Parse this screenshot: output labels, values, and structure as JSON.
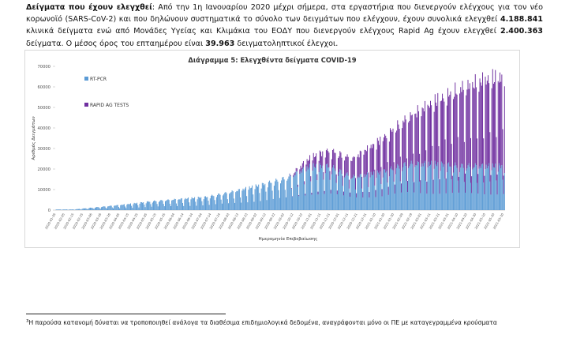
{
  "paragraph": {
    "lead": "Δείγματα που έχουν ελεγχθεί",
    "t1": ": Από την 1η Ιανουαρίου 2020 μέχρι σήμερα, στα εργαστήρια που διενεργούν ελέγχους για τον νέο κορωνοϊό (SARS-CoV-2) και που δηλώνουν συστηματικά το σύνολο των δειγμάτων που ελέγχουν, έχουν συνολικά ελεγχθεί ",
    "n1": "4.188.841",
    "t2": " κλινικά δείγματα ενώ από Μονάδες Υγείας και Κλιμάκια του ΕΟΔΥ που διενεργούν ελέγχους Rapid Ag έχουν ελεγχθεί ",
    "n2": "2.400.363",
    "t3": " δείγματα.  Ο μέσος όρος του επταημέρου είναι ",
    "n3": "39.963",
    "t4": " δειγματοληπτικοί έλεγχοι."
  },
  "chart_data": {
    "type": "bar",
    "stacked": true,
    "title": "Διάγραμμα 5: Ελεγχθέντα δείγματα COVID-19",
    "xlabel": "Ημερομηνία Επιβεβαίωσης",
    "ylabel": "Αριθμός Δειγμάτων",
    "ylim": [
      0,
      70000
    ],
    "yticks": [
      0,
      10000,
      20000,
      30000,
      40000,
      50000,
      60000,
      70000
    ],
    "x_tick_labels": [
      "2020-01-26",
      "2020-02-05",
      "2020-02-15",
      "2020-02-25",
      "2020-03-06",
      "2020-03-16",
      "2020-03-26",
      "2020-04-05",
      "2020-04-15",
      "2020-04-25",
      "2020-05-05",
      "2020-05-15",
      "2020-05-25",
      "2020-06-04",
      "2020-06-14",
      "2020-06-24",
      "2020-07-04",
      "2020-07-14",
      "2020-07-24",
      "2020-08-03",
      "2020-08-13",
      "2020-08-23",
      "2020-09-02",
      "2020-09-12",
      "2020-09-22",
      "2020-10-02",
      "2020-10-12",
      "2020-10-22",
      "2020-11-01",
      "2020-11-11",
      "2020-11-21",
      "2020-12-01",
      "2020-12-11",
      "2020-12-21",
      "2020-12-31",
      "2021-01-10",
      "2021-01-20",
      "2021-01-30",
      "2021-02-09",
      "2021-02-19",
      "2021-03-01",
      "2021-03-11",
      "2021-03-21",
      "2021-03-31",
      "2021-04-10",
      "2021-04-20",
      "2021-04-30",
      "2021-05-10",
      "2021-05-20",
      "2021-05-30"
    ],
    "legend": [
      "RT-PCR",
      "RAPID AG TESTS"
    ],
    "legend_position": "top-left",
    "colors": {
      "RT-PCR": "#5b9bd5",
      "RAPID AG TESTS": "#7030a0"
    },
    "x_start": "2020-01-26",
    "x_end": "2021-05-31",
    "series_by_period": [
      {
        "period": "2020-01-26 / 2020-03-05",
        "RT-PCR": 300,
        "RAPID AG TESTS": 0
      },
      {
        "period": "2020-03-06 / 2020-03-25",
        "RT-PCR": 1500,
        "RAPID AG TESTS": 0
      },
      {
        "period": "2020-03-26 / 2020-04-24",
        "RT-PCR": 2500,
        "RAPID AG TESTS": 0
      },
      {
        "period": "2020-04-25 / 2020-05-24",
        "RT-PCR": 4000,
        "RAPID AG TESTS": 0
      },
      {
        "period": "2020-05-25 / 2020-06-23",
        "RT-PCR": 5000,
        "RAPID AG TESTS": 0
      },
      {
        "period": "2020-06-24 / 2020-07-23",
        "RT-PCR": 6000,
        "RAPID AG TESTS": 0
      },
      {
        "period": "2020-07-24 / 2020-08-22",
        "RT-PCR": 8500,
        "RAPID AG TESTS": 0
      },
      {
        "period": "2020-08-23 / 2020-09-21",
        "RT-PCR": 11500,
        "RAPID AG TESTS": 0
      },
      {
        "period": "2020-09-22 / 2020-10-21",
        "RT-PCR": 15000,
        "RAPID AG TESTS": 0
      },
      {
        "period": "2020-10-22 / 2020-11-10",
        "RT-PCR": 20000,
        "RAPID AG TESTS": 4000
      },
      {
        "period": "2020-11-11 / 2020-11-30",
        "RT-PCR": 20000,
        "RAPID AG TESTS": 7000
      },
      {
        "period": "2020-12-01 / 2020-12-30",
        "RT-PCR": 15000,
        "RAPID AG TESTS": 8000
      },
      {
        "period": "2020-12-31 / 2021-01-29",
        "RT-PCR": 17000,
        "RAPID AG TESTS": 14000
      },
      {
        "period": "2021-01-30 / 2021-02-28",
        "RT-PCR": 21000,
        "RAPID AG TESTS": 20000
      },
      {
        "period": "2021-03-01 / 2021-03-30",
        "RT-PCR": 21000,
        "RAPID AG TESTS": 27000
      },
      {
        "period": "2021-03-31 / 2021-04-29",
        "RT-PCR": 20000,
        "RAPID AG TESTS": 34000
      },
      {
        "period": "2021-04-30 / 2021-05-31",
        "RT-PCR": 20000,
        "RAPID AG TESTS": 38000
      }
    ],
    "series_peak_value": {
      "RAPID AG TESTS": 66000,
      "date": "2021-05-28"
    }
  },
  "footnote": {
    "mark": "3",
    "text": "Η παρούσα κατανομή δύναται να τροποποιηθεί ανάλογα τα διαθέσιμα επιδημιολογικά δεδομένα, αναγράφονται μόνο οι ΠΕ με καταγεγραμμένα κρούσματα"
  }
}
